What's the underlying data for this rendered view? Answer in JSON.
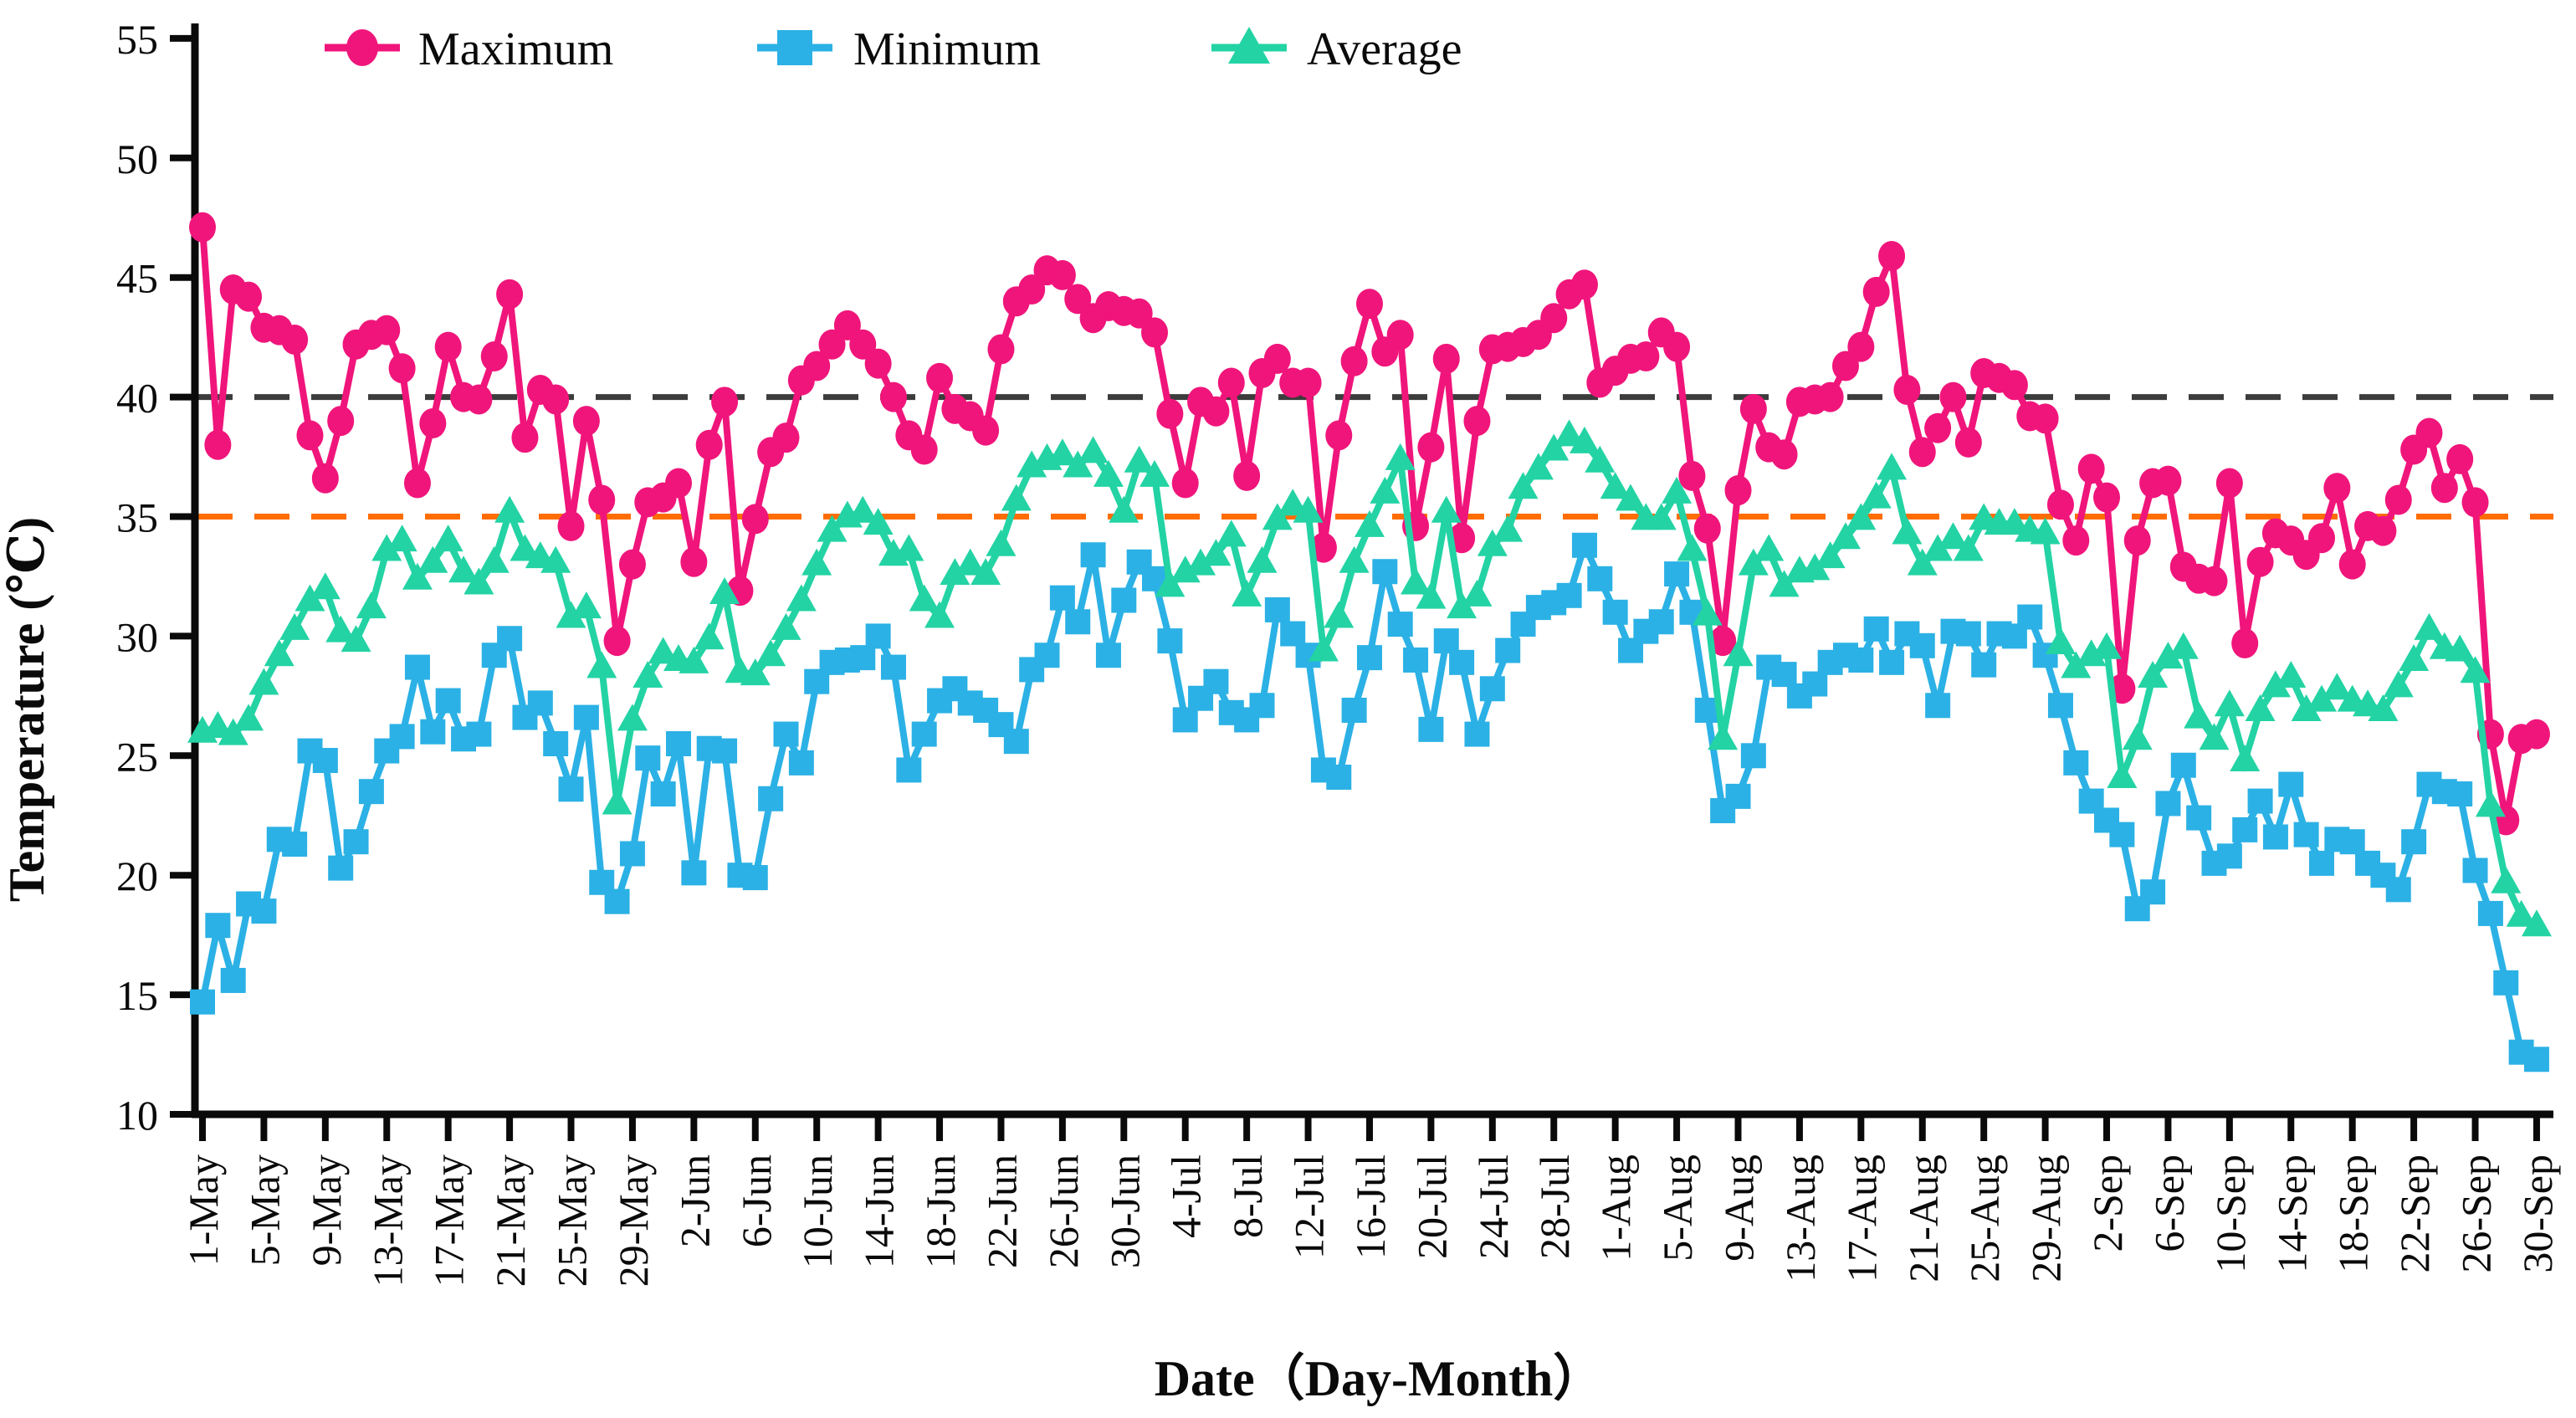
{
  "figure": {
    "kind": "temperature time-series figure",
    "background": "#ffffff",
    "text_color": "#0a0a0a"
  },
  "legend": {
    "items": [
      {
        "label": "Maximum",
        "marker": "circle",
        "color": "#F0157B"
      },
      {
        "label": "Minimum",
        "marker": "square",
        "color": "#2BB1E5"
      },
      {
        "label": "Average",
        "marker": "triangle",
        "color": "#23D3A4"
      }
    ]
  },
  "y_axis": {
    "title": "Temperature (℃)",
    "min": 10,
    "max": 55,
    "step": 5,
    "tick_labels": [
      "10",
      "15",
      "20",
      "25",
      "30",
      "35",
      "40",
      "45",
      "50",
      "55"
    ]
  },
  "x_axis": {
    "title": "Date（Day-Month）",
    "tick_labels": [
      "1-May",
      "5-May",
      "9-May",
      "13-May",
      "17-May",
      "21-May",
      "25-May",
      "29-May",
      "2-Jun",
      "6-Jun",
      "10-Jun",
      "14-Jun",
      "18-Jun",
      "22-Jun",
      "26-Jun",
      "30-Jun",
      "4-Jul",
      "8-Jul",
      "12-Jul",
      "16-Jul",
      "20-Jul",
      "24-Jul",
      "28-Jul",
      "1-Aug",
      "5-Aug",
      "9-Aug",
      "13-Aug",
      "17-Aug",
      "21-Aug",
      "25-Aug",
      "29-Aug",
      "2-Sep",
      "6-Sep",
      "10-Sep",
      "14-Sep",
      "18-Sep",
      "22-Sep",
      "26-Sep",
      "30-Sep"
    ],
    "tick_day_indices": [
      0,
      4,
      8,
      12,
      16,
      20,
      24,
      28,
      32,
      36,
      40,
      44,
      48,
      52,
      56,
      60,
      64,
      68,
      72,
      76,
      80,
      84,
      88,
      92,
      96,
      100,
      104,
      108,
      112,
      116,
      120,
      124,
      128,
      132,
      136,
      140,
      144,
      148,
      152
    ]
  },
  "reference_lines": [
    {
      "value": 40,
      "color": "#3c3c3c",
      "style": "dashed"
    },
    {
      "value": 35,
      "color": "#FF6D00",
      "style": "dashed"
    }
  ],
  "chart_data": {
    "type": "line",
    "title": "",
    "xlabel": "Date（Day-Month）",
    "ylabel": "Temperature (℃)",
    "ylim": [
      10,
      55
    ],
    "grid": false,
    "legend_position": "top-left",
    "x_start_date": "1-May",
    "x_end_date": "30-Sep",
    "n_days": 153,
    "series": [
      {
        "name": "Maximum",
        "color": "#F0157B",
        "marker": "circle",
        "values": [
          47.1,
          38.0,
          44.5,
          44.2,
          42.9,
          42.8,
          42.4,
          38.4,
          36.6,
          39.0,
          42.2,
          42.6,
          42.8,
          41.2,
          36.4,
          38.9,
          42.1,
          40.0,
          39.9,
          41.7,
          44.3,
          38.3,
          40.3,
          39.9,
          34.6,
          39.0,
          35.7,
          29.8,
          33.0,
          35.6,
          35.8,
          36.4,
          33.1,
          38.0,
          39.8,
          31.9,
          34.9,
          37.7,
          38.3,
          40.7,
          41.3,
          42.2,
          43.0,
          42.2,
          41.4,
          40.0,
          38.4,
          37.8,
          40.8,
          39.5,
          39.2,
          38.6,
          42.0,
          44.0,
          44.5,
          45.3,
          45.1,
          44.1,
          43.3,
          43.8,
          43.6,
          43.5,
          42.7,
          39.3,
          36.4,
          39.8,
          39.4,
          40.6,
          36.7,
          41.0,
          41.6,
          40.6,
          40.6,
          33.7,
          38.4,
          41.5,
          43.9,
          41.9,
          42.6,
          34.6,
          37.9,
          41.6,
          34.1,
          39.0,
          42.0,
          42.1,
          42.3,
          42.6,
          43.3,
          44.3,
          44.7,
          40.6,
          41.1,
          41.6,
          41.7,
          42.7,
          42.1,
          36.7,
          34.5,
          29.8,
          36.1,
          39.5,
          37.9,
          37.6,
          39.8,
          39.9,
          40.0,
          41.3,
          42.1,
          44.4,
          45.9,
          40.3,
          37.7,
          38.7,
          40.0,
          38.1,
          41.0,
          40.8,
          40.5,
          39.2,
          39.1,
          35.5,
          34.0,
          37.0,
          35.8,
          27.8,
          34.0,
          36.4,
          36.5,
          32.9,
          32.4,
          32.3,
          36.4,
          29.7,
          33.1,
          34.3,
          34.0,
          33.4,
          34.1,
          36.2,
          33.0,
          34.6,
          34.4,
          35.7,
          37.8,
          38.5,
          36.2,
          37.4,
          35.6,
          25.9,
          22.3,
          25.7,
          25.9
        ]
      },
      {
        "name": "Minimum",
        "color": "#2BB1E5",
        "marker": "square",
        "values": [
          14.7,
          17.9,
          15.6,
          18.8,
          18.5,
          21.5,
          21.3,
          25.2,
          24.8,
          20.3,
          21.4,
          23.5,
          25.2,
          25.8,
          28.7,
          26.0,
          27.3,
          25.7,
          25.9,
          29.2,
          29.9,
          26.6,
          27.2,
          25.5,
          23.6,
          26.6,
          19.7,
          18.9,
          20.9,
          24.9,
          23.4,
          25.5,
          20.1,
          25.3,
          25.2,
          20.0,
          19.9,
          23.2,
          25.9,
          24.7,
          28.1,
          28.9,
          29.0,
          29.1,
          30.0,
          28.7,
          24.4,
          25.9,
          27.3,
          27.8,
          27.2,
          26.9,
          26.3,
          25.6,
          28.6,
          29.2,
          31.6,
          30.6,
          33.4,
          29.2,
          31.5,
          33.1,
          32.4,
          29.8,
          26.5,
          27.4,
          28.1,
          26.8,
          26.5,
          27.1,
          31.1,
          30.1,
          29.2,
          24.4,
          24.1,
          26.9,
          29.1,
          32.7,
          30.5,
          29.0,
          26.1,
          29.8,
          28.9,
          25.9,
          27.8,
          29.4,
          30.5,
          31.2,
          31.4,
          31.7,
          33.8,
          32.4,
          31.0,
          29.4,
          30.2,
          30.6,
          32.6,
          31.0,
          26.9,
          22.7,
          23.3,
          25.0,
          28.7,
          28.4,
          27.5,
          28.0,
          28.9,
          29.2,
          29.0,
          30.3,
          28.9,
          30.1,
          29.6,
          27.1,
          30.2,
          30.1,
          28.8,
          30.1,
          30.0,
          30.8,
          29.2,
          27.1,
          24.7,
          23.1,
          22.3,
          21.7,
          18.6,
          19.3,
          23.0,
          24.6,
          22.4,
          20.5,
          20.8,
          21.9,
          23.1,
          21.6,
          23.8,
          21.7,
          20.5,
          21.5,
          21.4,
          20.5,
          20.0,
          19.4,
          21.4,
          23.8,
          23.5,
          23.4,
          20.2,
          18.4,
          15.5,
          12.6,
          12.3
        ]
      },
      {
        "name": "Average",
        "color": "#23D3A4",
        "marker": "triangle",
        "values": [
          26.0,
          26.2,
          25.9,
          26.5,
          28.0,
          29.2,
          30.3,
          31.5,
          32.0,
          30.2,
          29.8,
          31.2,
          33.6,
          34.0,
          32.4,
          33.1,
          34.0,
          32.7,
          32.2,
          33.1,
          35.2,
          33.6,
          33.3,
          33.1,
          30.8,
          31.2,
          28.7,
          23.0,
          26.5,
          28.3,
          29.3,
          29.0,
          28.9,
          29.9,
          31.8,
          28.5,
          28.4,
          29.2,
          30.3,
          31.5,
          33.0,
          34.4,
          35.0,
          35.2,
          34.7,
          33.4,
          33.6,
          31.5,
          30.8,
          32.6,
          33.0,
          32.6,
          33.8,
          35.7,
          37.1,
          37.4,
          37.6,
          37.1,
          37.7,
          36.7,
          35.2,
          37.3,
          36.7,
          32.1,
          32.7,
          33.0,
          33.4,
          34.2,
          31.7,
          33.1,
          34.9,
          35.5,
          35.2,
          29.4,
          30.8,
          33.1,
          34.6,
          36.0,
          37.4,
          32.2,
          31.6,
          35.2,
          31.2,
          31.7,
          33.8,
          34.4,
          36.2,
          37.0,
          37.8,
          38.4,
          38.1,
          37.3,
          36.2,
          35.7,
          34.9,
          34.9,
          36.0,
          33.6,
          30.9,
          25.7,
          29.2,
          33.0,
          33.6,
          32.1,
          32.7,
          32.8,
          33.3,
          34.1,
          34.9,
          35.8,
          37.0,
          34.3,
          33.0,
          33.6,
          34.1,
          33.6,
          34.9,
          34.7,
          34.7,
          34.4,
          34.3,
          29.7,
          28.7,
          29.2,
          29.5,
          24.1,
          25.7,
          28.3,
          29.1,
          29.5,
          26.6,
          25.7,
          27.1,
          24.8,
          26.9,
          27.9,
          28.3,
          26.9,
          27.3,
          27.8,
          27.3,
          27.1,
          26.9,
          27.9,
          29.0,
          30.3,
          29.5,
          29.4,
          28.5,
          22.9,
          19.7,
          18.3,
          17.9
        ]
      }
    ]
  }
}
